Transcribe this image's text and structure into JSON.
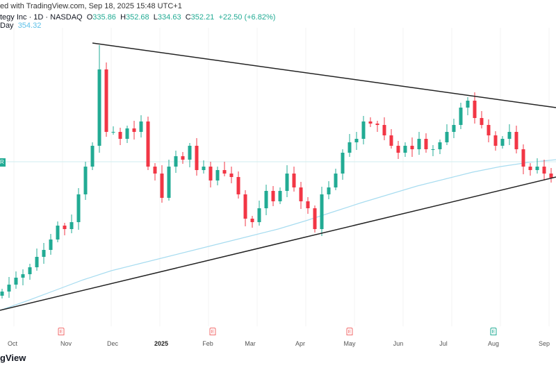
{
  "header": {
    "published": "ed with TradingView.com, Sep 18, 2025 15:48 UTC+1",
    "symbol": "tegy Inc · 1D · NASDAQ",
    "o_label": "O",
    "o": "335.86",
    "h_label": "H",
    "h": "352.68",
    "l_label": "L",
    "l": "334.63",
    "c_label": "C",
    "c": "352.21",
    "change": "+22.50 (+6.82%)",
    "ma_label": "Day",
    "ma_value": "354.32"
  },
  "price_badge": "R",
  "footer_logo": "gView",
  "colors": {
    "up": "#22ab94",
    "down": "#f23645",
    "ma": "#a7dcf0",
    "trend": "#222222"
  },
  "chart_data": {
    "type": "candlestick",
    "xlabels": [
      "Oct",
      "Nov",
      "Dec",
      "2025",
      "Feb",
      "Mar",
      "Apr",
      "May",
      "Jun",
      "Jul",
      "Aug",
      "Sep"
    ],
    "earnings": [
      {
        "label": "E",
        "month": "Nov",
        "type": "down"
      },
      {
        "label": "E",
        "month": "Feb",
        "type": "down"
      },
      {
        "label": "E",
        "month": "May",
        "type": "down"
      },
      {
        "label": "E",
        "month": "Aug",
        "type": "up"
      }
    ],
    "closes": [
      188,
      198,
      208,
      213,
      223,
      238,
      248,
      263,
      283,
      278,
      288,
      328,
      368,
      398,
      508,
      418,
      418,
      408,
      423,
      418,
      433,
      368,
      358,
      323,
      368,
      383,
      378,
      398,
      363,
      368,
      348,
      363,
      358,
      353,
      328,
      293,
      288,
      308,
      333,
      318,
      333,
      358,
      338,
      318,
      308,
      278,
      328,
      338,
      358,
      388,
      403,
      408,
      433,
      430,
      428,
      413,
      398,
      388,
      398,
      393,
      408,
      393,
      393,
      403,
      418,
      428,
      453,
      463,
      438,
      428,
      413,
      398,
      408,
      418,
      393,
      368,
      363,
      368,
      358,
      352
    ],
    "peak_high": 543,
    "moving_average": [
      161,
      175,
      190,
      205,
      218,
      228,
      238,
      248,
      258,
      268,
      278,
      290,
      303,
      316,
      328,
      340,
      350,
      360,
      368,
      374,
      378
    ],
    "trendlines": [
      {
        "name": "upper",
        "from": {
          "index": 13.3,
          "price": 546
        },
        "to": {
          "index": 80,
          "price": 453
        }
      },
      {
        "name": "lower",
        "from": {
          "index": 0,
          "price": 161
        },
        "to": {
          "index": 80,
          "price": 353
        }
      }
    ],
    "yrange": [
      150,
      560
    ]
  }
}
